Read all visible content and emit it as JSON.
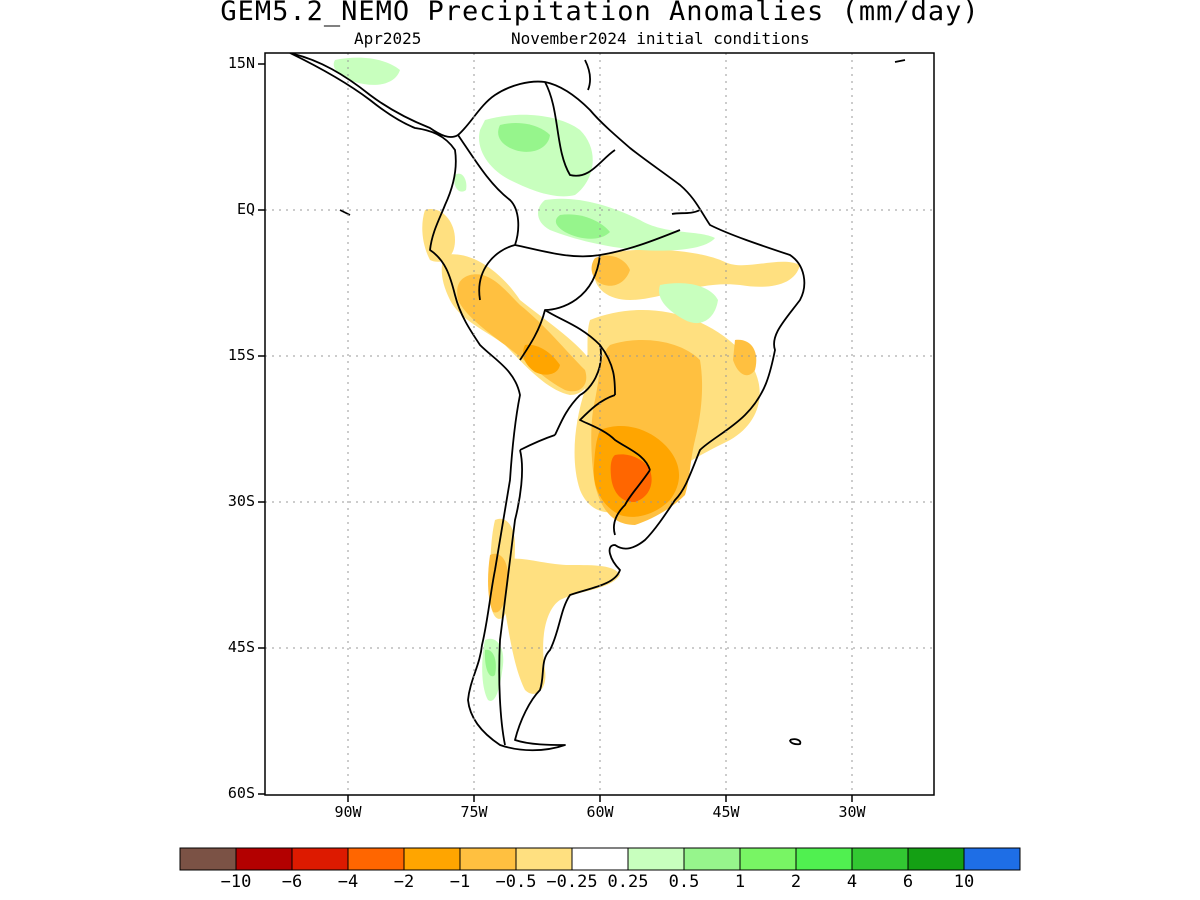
{
  "title": "GEM5.2_NEMO Precipitation Anomalies (mm/day)",
  "subtitle_left": "Apr2025",
  "subtitle_right": "November2024 initial conditions",
  "lat_labels": [
    "15N",
    "EQ",
    "15S",
    "30S",
    "45S",
    "60S"
  ],
  "lon_labels": [
    "90W",
    "75W",
    "60W",
    "45W",
    "30W"
  ],
  "colorbar": {
    "colors": [
      "#7b5245",
      "#b30000",
      "#dd1a00",
      "#ff6600",
      "#ffa500",
      "#ffc040",
      "#ffe080",
      "#ffffff",
      "#c8ffbe",
      "#96f58c",
      "#78f564",
      "#50f050",
      "#32c832",
      "#14a014",
      "#1e6ee6"
    ],
    "labels": [
      "-10",
      "-6",
      "-4",
      "-2",
      "-1",
      "-0.5",
      "-0.25",
      "0.25",
      "0.5",
      "1",
      "2",
      "4",
      "6",
      "10"
    ]
  },
  "map": {
    "extent": {
      "lon": [
        -100,
        -20
      ],
      "lat": [
        -60,
        15
      ]
    },
    "grid": "dotted",
    "anomalies": [
      {
        "level": "-2",
        "region": "Paraguay / southern Brazil core"
      },
      {
        "level": "-1",
        "region": "Central-west and southern Brazil"
      },
      {
        "level": "-0.5",
        "region": "Andes, central Brazil, northeast coast"
      },
      {
        "level": "-0.25",
        "region": "Margins of dry area, central Chile"
      },
      {
        "level": "0.25",
        "region": "Colombia, Venezuela, northern Amazon"
      },
      {
        "level": "0.5",
        "region": "Northern Colombia, southern Chile"
      }
    ]
  }
}
